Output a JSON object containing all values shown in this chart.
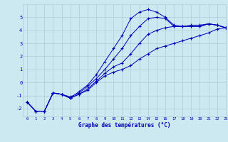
{
  "xlabel": "Graphe des températures (°C)",
  "xlim": [
    -0.5,
    23
  ],
  "ylim": [
    -2.6,
    6.0
  ],
  "xticks": [
    0,
    1,
    2,
    3,
    4,
    5,
    6,
    7,
    8,
    9,
    10,
    11,
    12,
    13,
    14,
    15,
    16,
    17,
    18,
    19,
    20,
    21,
    22,
    23
  ],
  "yticks": [
    -2,
    -1,
    0,
    1,
    2,
    3,
    4,
    5
  ],
  "bg_color": "#cce8f0",
  "grid_color": "#aaccd8",
  "line_color": "#0000bb",
  "line1_y": [
    -1.5,
    -2.2,
    -2.2,
    -0.8,
    -0.9,
    -1.2,
    -0.9,
    -0.6,
    0.0,
    0.5,
    0.8,
    1.0,
    1.3,
    1.8,
    2.2,
    2.6,
    2.8,
    3.0,
    3.2,
    3.4,
    3.6,
    3.8,
    4.1,
    4.2
  ],
  "line2_y": [
    -1.5,
    -2.2,
    -2.2,
    -0.8,
    -0.9,
    -1.2,
    -0.7,
    -0.2,
    0.6,
    1.6,
    2.6,
    3.6,
    4.9,
    5.4,
    5.6,
    5.4,
    5.0,
    4.4,
    4.3,
    4.3,
    4.3,
    4.5,
    4.4,
    4.2
  ],
  "line3_y": [
    -1.5,
    -2.2,
    -2.2,
    -0.8,
    -0.9,
    -1.2,
    -0.9,
    -0.5,
    0.1,
    0.7,
    1.2,
    1.5,
    2.2,
    3.0,
    3.7,
    4.0,
    4.2,
    4.3,
    4.3,
    4.4,
    4.4,
    4.5,
    4.4,
    4.2
  ],
  "line4_y": [
    -1.5,
    -2.2,
    -2.2,
    -0.8,
    -0.9,
    -1.1,
    -0.8,
    -0.3,
    0.3,
    1.0,
    1.8,
    2.6,
    3.6,
    4.3,
    4.9,
    5.0,
    4.9,
    4.3,
    4.3,
    4.3,
    4.3,
    4.5,
    4.4,
    4.2
  ],
  "x": [
    0,
    1,
    2,
    3,
    4,
    5,
    6,
    7,
    8,
    9,
    10,
    11,
    12,
    13,
    14,
    15,
    16,
    17,
    18,
    19,
    20,
    21,
    22,
    23
  ]
}
